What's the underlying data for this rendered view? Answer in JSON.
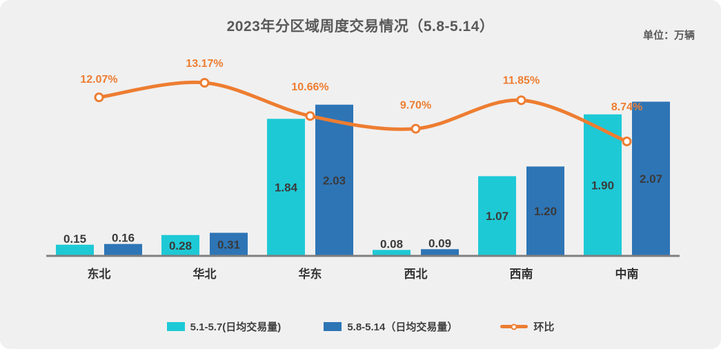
{
  "title": "2023年分区域周度交易情况（5.8-5.14）",
  "unit_label": "单位：万辆",
  "colors": {
    "background": "#F0F0F0",
    "bar_series1": "#1EC9D6",
    "bar_series2": "#2E75B6",
    "line": "#ED7D31",
    "axis": "#7F7F7F",
    "value_label": "#3A3A3A",
    "category_label": "#333333",
    "pct_label": "#ED7D31",
    "title_text": "#595959"
  },
  "chart_data": {
    "type": "bar",
    "title": "2023年分区域周度交易情况（5.8-5.14）",
    "unit": "万辆",
    "categories": [
      "东北",
      "华北",
      "华东",
      "西北",
      "西南",
      "中南"
    ],
    "series": [
      {
        "name": "5.1-5.7(日均交易量)",
        "type": "bar",
        "values": [
          0.15,
          0.28,
          1.84,
          0.08,
          1.07,
          1.9
        ],
        "value_labels": [
          "0.15",
          "0.28",
          "1.84",
          "0.08",
          "1.07",
          "1.90"
        ]
      },
      {
        "name": "5.8-5.14（日均交易量）",
        "type": "bar",
        "values": [
          0.16,
          0.31,
          2.03,
          0.09,
          1.2,
          2.07
        ],
        "value_labels": [
          "0.16",
          "0.31",
          "2.03",
          "0.09",
          "1.20",
          "2.07"
        ]
      },
      {
        "name": "环比",
        "type": "line",
        "values": [
          12.07,
          13.17,
          10.66,
          9.7,
          11.85,
          8.74
        ],
        "value_labels": [
          "12.07%",
          "13.17%",
          "10.66%",
          "9.70%",
          "11.85%",
          "8.74%"
        ]
      }
    ],
    "legend_position": "bottom",
    "grid": false,
    "y_axis_visible": false
  }
}
